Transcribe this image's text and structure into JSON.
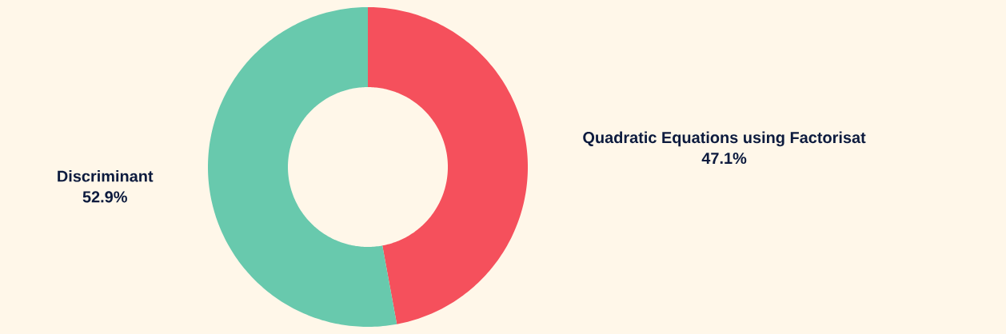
{
  "chart_data": {
    "type": "donut",
    "categories": [
      "Quadratic Equations using Factorisat",
      "Discriminant"
    ],
    "values": [
      47.1,
      52.9
    ],
    "colors": [
      "#f5505c",
      "#68c9ad"
    ],
    "value_labels": [
      "47.1%",
      "52.9%"
    ]
  }
}
